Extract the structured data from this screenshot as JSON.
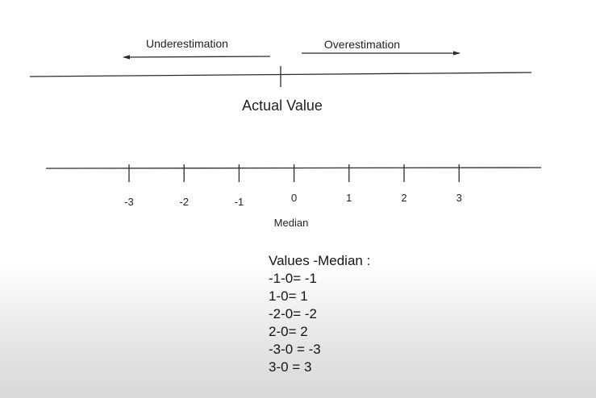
{
  "top_line": {
    "left_arrow_label": "Underestimation",
    "right_arrow_label": "Overestimation",
    "center_label": "Actual Value"
  },
  "number_line": {
    "ticks": [
      "-3",
      "-2",
      "-1",
      "0",
      "1",
      "2",
      "3"
    ],
    "center_label": "Median"
  },
  "values": {
    "heading": "Values -Median :",
    "lines": [
      "-1-0= -1",
      "1-0= 1",
      "-2-0= -2",
      "2-0= 2",
      "-3-0 = -3",
      "3-0 = 3"
    ]
  }
}
